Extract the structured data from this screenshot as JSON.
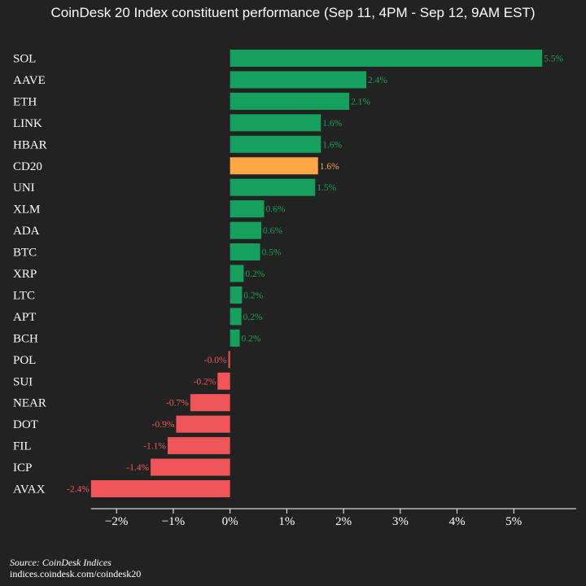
{
  "chart_data": {
    "type": "bar",
    "orientation": "horizontal",
    "title": "CoinDesk 20 Index constituent performance (Sep 11, 4PM - Sep 12, 9AM EST)",
    "categories": [
      "SOL",
      "AAVE",
      "ETH",
      "LINK",
      "HBAR",
      "CD20",
      "UNI",
      "XLM",
      "ADA",
      "BTC",
      "XRP",
      "LTC",
      "APT",
      "BCH",
      "POL",
      "SUI",
      "NEAR",
      "DOT",
      "FIL",
      "ICP",
      "AVAX"
    ],
    "values": [
      5.5,
      2.4,
      2.1,
      1.6,
      1.6,
      1.55,
      1.5,
      0.6,
      0.55,
      0.53,
      0.24,
      0.21,
      0.2,
      0.17,
      -0.03,
      -0.22,
      -0.7,
      -0.95,
      -1.1,
      -1.4,
      -2.45
    ],
    "data_labels": [
      "5.5%",
      "2.4%",
      "2.1%",
      "1.6%",
      "1.6%",
      "1.6%",
      "1.5%",
      "0.6%",
      "0.6%",
      "0.5%",
      "0.2%",
      "0.2%",
      "0.2%",
      "0.2%",
      "-0.0%",
      "-0.2%",
      "-0.7%",
      "-0.9%",
      "-1.1%",
      "-1.4%",
      "-2.4%"
    ],
    "highlight_category": "CD20",
    "xlim": [
      -3.05,
      6.1
    ],
    "xticks": [
      -2,
      -1,
      0,
      1,
      2,
      3,
      4,
      5
    ],
    "xtick_labels": [
      "−2%",
      "−1%",
      "0%",
      "1%",
      "2%",
      "3%",
      "4%",
      "5%"
    ],
    "grid": false,
    "legend": "none",
    "colors": {
      "background": "#222222",
      "positive": "#16a05d",
      "negative": "#f0555a",
      "highlight": "#ffa744",
      "axis": "#ffffff",
      "text": "#ffffff"
    }
  },
  "source": {
    "line1": "Source: CoinDesk Indices",
    "line2": "indices.coindesk.com/coindesk20"
  }
}
